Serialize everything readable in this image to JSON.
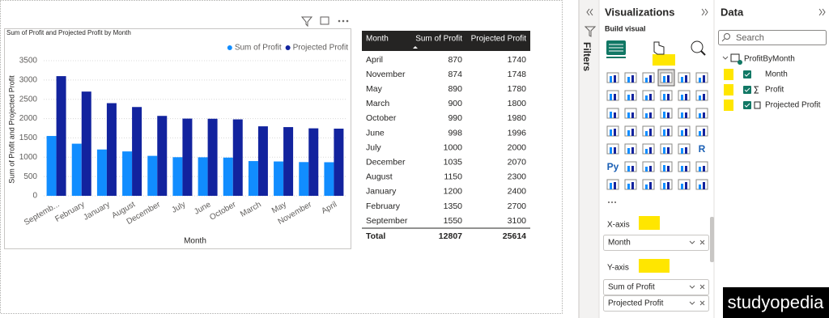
{
  "chart_data": {
    "type": "bar",
    "title": "Sum of Profit and Projected Profit by Month",
    "x_label": "Month",
    "y_label": "Sum of Profit and Projected Profit",
    "categories": [
      "Septemb...",
      "February",
      "January",
      "August",
      "December",
      "July",
      "June",
      "October",
      "March",
      "May",
      "November",
      "April"
    ],
    "series": [
      {
        "name": "Sum of Profit",
        "color": "#118dff",
        "values": [
          1550,
          1350,
          1200,
          1150,
          1035,
          1000,
          998,
          990,
          900,
          890,
          874,
          870
        ]
      },
      {
        "name": "Projected Profit",
        "color": "#12239e",
        "values": [
          3100,
          2700,
          2400,
          2300,
          2070,
          2000,
          1996,
          1980,
          1800,
          1780,
          1748,
          1740
        ]
      }
    ],
    "ylim": [
      0,
      3500
    ],
    "yticks": [
      0,
      500,
      1000,
      1500,
      2000,
      2500,
      3000,
      3500
    ],
    "grid": true,
    "legend": "top-right"
  },
  "table": {
    "columns": [
      "Month",
      "Sum of Profit",
      "Projected Profit"
    ],
    "rows": [
      [
        "April",
        870,
        1740
      ],
      [
        "November",
        874,
        1748
      ],
      [
        "May",
        890,
        1780
      ],
      [
        "March",
        900,
        1800
      ],
      [
        "October",
        990,
        1980
      ],
      [
        "June",
        998,
        1996
      ],
      [
        "July",
        1000,
        2000
      ],
      [
        "December",
        1035,
        2070
      ],
      [
        "August",
        1150,
        2300
      ],
      [
        "January",
        1200,
        2400
      ],
      [
        "February",
        1350,
        2700
      ],
      [
        "September",
        1550,
        3100
      ]
    ],
    "total": [
      "Total",
      12807,
      25614
    ]
  },
  "filters": "Filters",
  "visualizations": {
    "title": "Visualizations",
    "subtitle": "Build visual",
    "icon_labels": [
      "R",
      "Py"
    ],
    "x_axis": "X-axis",
    "x_fields": [
      "Month"
    ],
    "y_axis": "Y-axis",
    "y_fields": [
      "Sum of Profit",
      "Projected Profit"
    ]
  },
  "data_pane": {
    "title": "Data",
    "search": "Search",
    "table": "ProfitByMonth",
    "fields": [
      "Month",
      "Profit",
      "Projected Profit"
    ]
  },
  "watermark": "studyopedia"
}
